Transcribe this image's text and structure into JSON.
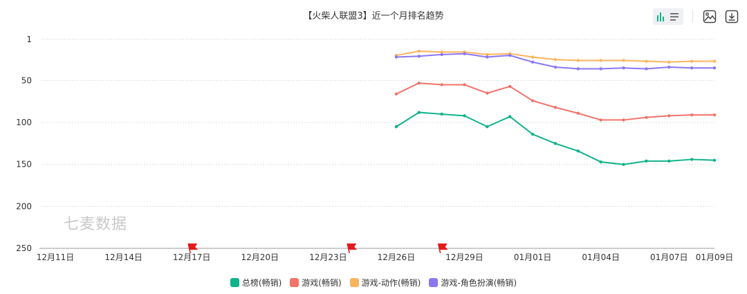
{
  "chart_data": {
    "type": "line",
    "title": "【火柴人联盟3】近一个月排名趋势",
    "y_inverted": true,
    "ylim": [
      1,
      250
    ],
    "y_ticks": [
      1,
      50,
      100,
      150,
      200,
      250
    ],
    "x_ticks": [
      {
        "label": "12月11日",
        "date": "2023-12-11"
      },
      {
        "label": "12月14日",
        "date": "2023-12-14"
      },
      {
        "label": "12月17日",
        "date": "2023-12-17"
      },
      {
        "label": "12月20日",
        "date": "2023-12-20"
      },
      {
        "label": "12月23日",
        "date": "2023-12-23"
      },
      {
        "label": "12月26日",
        "date": "2023-12-26"
      },
      {
        "label": "12月29日",
        "date": "2023-12-29"
      },
      {
        "label": "01月01日",
        "date": "2024-01-01"
      },
      {
        "label": "01月04日",
        "date": "2024-01-04"
      },
      {
        "label": "01月07日",
        "date": "2024-01-07"
      },
      {
        "label": "01月09日",
        "date": "2024-01-09"
      }
    ],
    "grid": true,
    "legend_position": "bottom",
    "x": [
      "2023-12-26",
      "2023-12-27",
      "2023-12-28",
      "2023-12-29",
      "2023-12-30",
      "2023-12-31",
      "2024-01-01",
      "2024-01-02",
      "2024-01-03",
      "2024-01-04",
      "2024-01-05",
      "2024-01-06",
      "2024-01-07",
      "2024-01-08",
      "2024-01-09"
    ],
    "series": [
      {
        "name": "总榜(畅销)",
        "color": "#10b38a",
        "values": [
          105,
          88,
          90,
          92,
          105,
          93,
          114,
          125,
          134,
          147,
          150,
          146,
          146,
          144,
          145
        ]
      },
      {
        "name": "游戏(畅销)",
        "color": "#f2736a",
        "values": [
          66,
          53,
          55,
          55,
          65,
          57,
          74,
          82,
          89,
          97,
          97,
          94,
          92,
          91,
          91
        ]
      },
      {
        "name": "游戏-动作(畅销)",
        "color": "#fbb45f",
        "values": [
          20,
          15,
          16,
          16,
          19,
          18,
          22,
          25,
          26,
          26,
          26,
          27,
          28,
          27,
          27
        ]
      },
      {
        "name": "游戏-角色扮演(畅销)",
        "color": "#8b76f3",
        "values": [
          22,
          21,
          19,
          18,
          22,
          20,
          28,
          34,
          36,
          36,
          35,
          36,
          34,
          35,
          35
        ]
      }
    ],
    "flags": [
      "2023-12-17",
      "2023-12-24",
      "2023-12-28"
    ]
  },
  "watermark": "七麦数据",
  "toolbar": {
    "items": [
      {
        "name": "chart-type-switch",
        "icon": "bar-line-switch-icon"
      },
      {
        "name": "save-image",
        "icon": "image-icon"
      },
      {
        "name": "download",
        "icon": "download-icon"
      }
    ]
  },
  "colors": {
    "grid": "#dddddd",
    "axis": "#999999",
    "flag": "#e21b1b"
  }
}
